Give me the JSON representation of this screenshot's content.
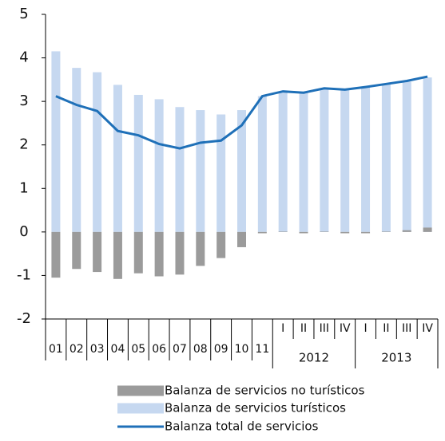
{
  "chart_data": {
    "type": "bar_line",
    "categories": [
      "01",
      "02",
      "03",
      "04",
      "05",
      "06",
      "07",
      "08",
      "09",
      "10",
      "11",
      "I",
      "II",
      "III",
      "IV",
      "I",
      "II",
      "III",
      "IV"
    ],
    "category_groups": [
      null,
      null,
      null,
      null,
      null,
      null,
      null,
      null,
      null,
      null,
      null,
      "2012",
      "2012",
      "2012",
      "2012",
      "2013",
      "2013",
      "2013",
      "2013"
    ],
    "series": [
      {
        "name": "Balanza de servicios no turísticos",
        "type": "bar",
        "color": "#9b9b9b",
        "values": [
          -1.05,
          -0.85,
          -0.92,
          -1.08,
          -0.95,
          -1.02,
          -0.98,
          -0.78,
          -0.6,
          -0.35,
          -0.03,
          0.01,
          -0.03,
          0.01,
          -0.03,
          -0.03,
          0.01,
          0.04,
          0.1
        ]
      },
      {
        "name": "Balanza de servicios turísticos",
        "type": "bar",
        "color": "#c6d8f0",
        "values": [
          4.15,
          3.77,
          3.67,
          3.38,
          3.15,
          3.05,
          2.87,
          2.8,
          2.7,
          2.8,
          3.12,
          3.2,
          3.2,
          3.28,
          3.27,
          3.33,
          3.4,
          3.45,
          3.55
        ]
      },
      {
        "name": "Balanza total de servicios",
        "type": "line",
        "color": "#1f70b8",
        "values": [
          3.12,
          2.92,
          2.78,
          2.32,
          2.22,
          2.02,
          1.92,
          2.05,
          2.1,
          2.45,
          3.12,
          3.23,
          3.2,
          3.3,
          3.27,
          3.33,
          3.4,
          3.47,
          3.57
        ]
      }
    ],
    "ylim": [
      -2,
      5
    ],
    "yticks": [
      -2,
      -1,
      0,
      1,
      2,
      3,
      4,
      5
    ],
    "legend": "bottom"
  }
}
